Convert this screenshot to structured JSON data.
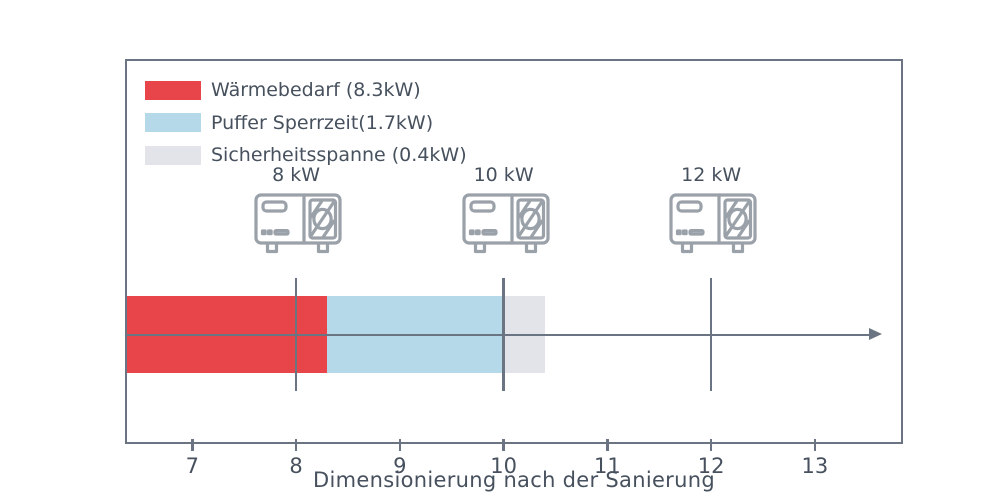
{
  "chart_data": {
    "type": "bar",
    "orientation": "horizontal-stacked-on-number-line",
    "title": "",
    "xlabel": "Dimensionierung nach der Sanierung",
    "ylabel": "",
    "xlim": [
      6.37,
      13.83
    ],
    "xticks": [
      7,
      8,
      9,
      10,
      11,
      12,
      13
    ],
    "grid": false,
    "bar": {
      "total_kw": 10.4,
      "segments": [
        {
          "name": "waermebedarf",
          "label": "Wärmebedarf (8.3kW)",
          "value_kw": 8.3,
          "start": 0,
          "end": 8.3,
          "color": "#e8454b"
        },
        {
          "name": "puffer-sperrzeit",
          "label": "Puffer Sperrzeit(1.7kW)",
          "value_kw": 1.7,
          "start": 8.3,
          "end": 10.0,
          "color": "#b5d9e9"
        },
        {
          "name": "sicherheitsspanne",
          "label": "Sicherheitsspanne (0.4kW)",
          "value_kw": 0.4,
          "start": 10.0,
          "end": 10.4,
          "color": "#e2e4e9"
        }
      ]
    },
    "pump_options": [
      {
        "label": "8 kW",
        "value_kw": 8,
        "icon": "heat-pump-icon"
      },
      {
        "label": "10 kW",
        "value_kw": 10,
        "icon": "heat-pump-icon"
      },
      {
        "label": "12 kW",
        "value_kw": 12,
        "icon": "heat-pump-icon"
      }
    ],
    "legend": {
      "position": "upper-left"
    },
    "arrow_end": 13.65
  },
  "colors": {
    "axis": "#6b7482",
    "text": "#47515e",
    "icon_stroke": "#9aa1a9",
    "background": "#ffffff"
  }
}
